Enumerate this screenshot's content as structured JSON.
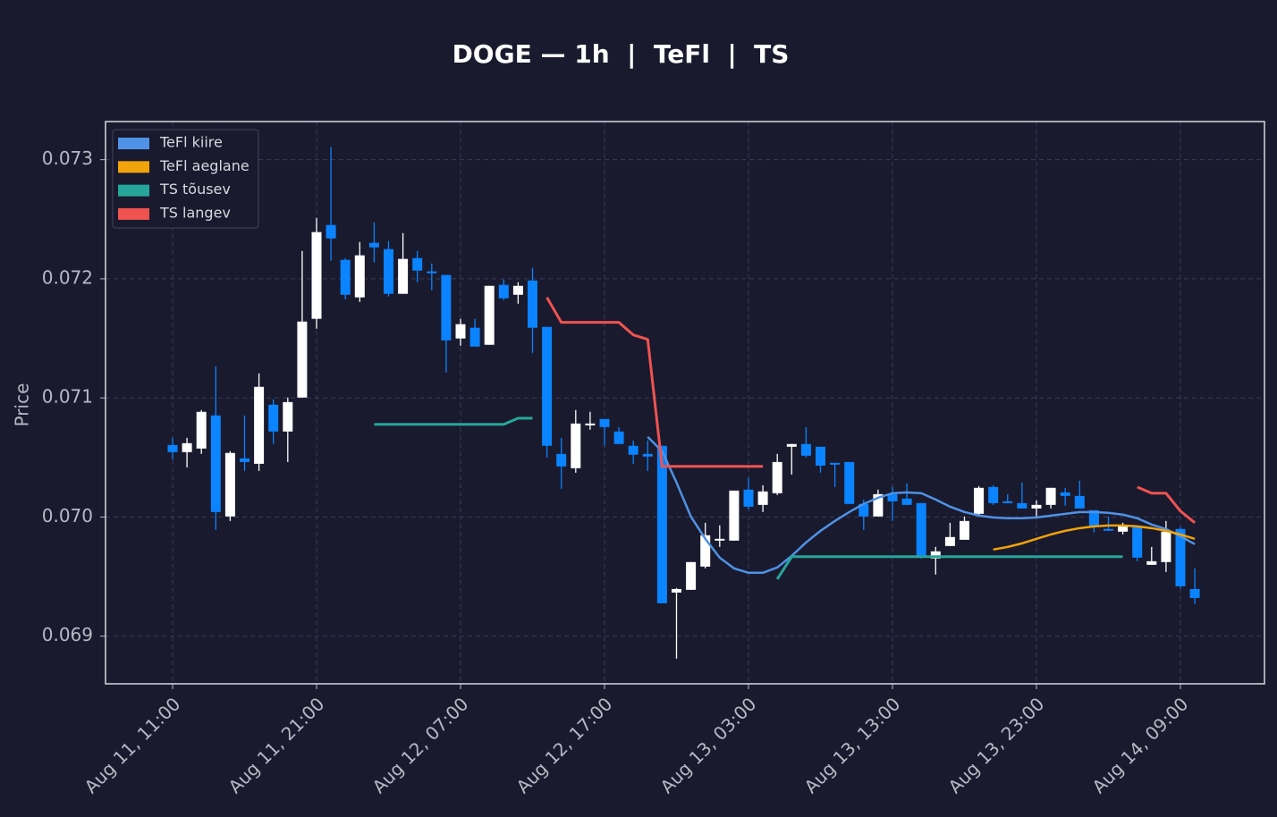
{
  "chart_data": {
    "type": "candlestick",
    "title": "DOGE — 1h  |  TeFl  |  TS",
    "y_label": "Price",
    "categories": [
      "Aug 11, 11:00",
      null,
      null,
      null,
      null,
      null,
      null,
      null,
      null,
      null,
      "Aug 11, 21:00",
      null,
      null,
      null,
      null,
      null,
      null,
      null,
      null,
      null,
      "Aug 12, 07:00",
      null,
      null,
      null,
      null,
      null,
      null,
      null,
      null,
      null,
      "Aug 12, 17:00",
      null,
      null,
      null,
      null,
      null,
      null,
      null,
      null,
      null,
      "Aug 13, 03:00",
      null,
      null,
      null,
      null,
      null,
      null,
      null,
      null,
      null,
      "Aug 13, 13:00",
      null,
      null,
      null,
      null,
      null,
      null,
      null,
      null,
      null,
      "Aug 13, 23:00",
      null,
      null,
      null,
      null,
      null,
      null,
      null,
      null,
      null,
      "Aug 14, 09:00",
      null
    ],
    "open": [
      0.070605,
      0.070545,
      0.070575,
      0.070853,
      0.070005,
      0.070492,
      0.070447,
      0.070943,
      0.070718,
      0.071003,
      0.071664,
      0.072452,
      0.072159,
      0.071844,
      0.072302,
      0.072249,
      0.071874,
      0.072174,
      0.072062,
      0.072032,
      0.071499,
      0.071589,
      0.071446,
      0.071949,
      0.071866,
      0.071986,
      0.071596,
      0.07053,
      0.07041,
      0.07077,
      0.070823,
      0.070718,
      0.070598,
      0.07053,
      0.070598,
      0.069366,
      0.069389,
      0.069584,
      0.069802,
      0.069802,
      0.07023,
      0.070102,
      0.0702,
      0.07059,
      0.070613,
      0.07059,
      0.070455,
      0.070462,
      0.07011,
      0.070005,
      0.070192,
      0.070155,
      0.070117,
      0.069652,
      0.069757,
      0.069809,
      0.070027,
      0.070252,
      0.070132,
      0.070117,
      0.070072,
      0.070102,
      0.070207,
      0.070177,
      0.070057,
      0.0699,
      0.069877,
      0.069915,
      0.069599,
      0.069622,
      0.0699,
      0.069396
    ],
    "high": [
      0.070665,
      0.070665,
      0.070898,
      0.071266,
      0.070553,
      0.070853,
      0.071206,
      0.070988,
      0.071003,
      0.072234,
      0.072512,
      0.073105,
      0.072174,
      0.072309,
      0.072474,
      0.072317,
      0.072384,
      0.072234,
      0.072129,
      0.072032,
      0.071664,
      0.071664,
      0.071941,
      0.071994,
      0.071971,
      0.072092,
      0.071596,
      0.070665,
      0.070898,
      0.070883,
      0.070823,
      0.070755,
      0.070643,
      0.070643,
      0.070598,
      0.069404,
      0.069622,
      0.069952,
      0.06993,
      0.070222,
      0.070327,
      0.070267,
      0.07053,
      0.070613,
      0.070755,
      0.07059,
      0.070455,
      0.070462,
      0.070147,
      0.07023,
      0.070252,
      0.070282,
      0.070117,
      0.069749,
      0.069952,
      0.070005,
      0.07026,
      0.070267,
      0.070192,
      0.07029,
      0.07014,
      0.070245,
      0.070245,
      0.070305,
      0.070057,
      0.070005,
      0.069952,
      0.069915,
      0.069749,
      0.069967,
      0.069915,
      0.069569
    ],
    "low": [
      0.070485,
      0.070417,
      0.07053,
      0.069892,
      0.069967,
      0.070387,
      0.070387,
      0.070613,
      0.070462,
      0.071003,
      0.071581,
      0.072152,
      0.071829,
      0.071806,
      0.072137,
      0.071851,
      0.071874,
      0.071971,
      0.071904,
      0.071213,
      0.071438,
      0.071431,
      0.071446,
      0.071821,
      0.071791,
      0.071378,
      0.0705,
      0.070237,
      0.070372,
      0.070733,
      0.070598,
      0.070613,
      0.070447,
      0.070387,
      0.069276,
      0.068811,
      0.069389,
      0.069569,
      0.069749,
      0.069802,
      0.070065,
      0.070042,
      0.070185,
      0.070357,
      0.0705,
      0.070372,
      0.070252,
      0.07011,
      0.069892,
      0.070005,
      0.069967,
      0.070102,
      0.069652,
      0.069517,
      0.069757,
      0.069809,
      0.070005,
      0.070102,
      0.070117,
      0.070072,
      0.070005,
      0.070072,
      0.070095,
      0.070072,
      0.06987,
      0.069885,
      0.069854,
      0.069629,
      0.069599,
      0.069539,
      0.069404,
      0.069269
    ],
    "close": [
      0.070545,
      0.07062,
      0.070883,
      0.070042,
      0.070538,
      0.070462,
      0.071093,
      0.070718,
      0.070965,
      0.071641,
      0.072392,
      0.072339,
      0.071866,
      0.072197,
      0.072264,
      0.071874,
      0.072167,
      0.072069,
      0.072047,
      0.071483,
      0.071619,
      0.071431,
      0.071941,
      0.071836,
      0.071941,
      0.071589,
      0.070598,
      0.070425,
      0.070785,
      0.070785,
      0.070755,
      0.070613,
      0.070523,
      0.070508,
      0.069276,
      0.069396,
      0.069622,
      0.069847,
      0.069817,
      0.070222,
      0.070087,
      0.070215,
      0.070462,
      0.070613,
      0.070515,
      0.070432,
      0.07044,
      0.07011,
      0.070005,
      0.070192,
      0.070132,
      0.070102,
      0.069667,
      0.069712,
      0.069832,
      0.069967,
      0.070245,
      0.070117,
      0.070117,
      0.070072,
      0.070102,
      0.070245,
      0.070177,
      0.070072,
      0.069922,
      0.069885,
      0.06993,
      0.069659,
      0.069629,
      0.069877,
      0.069419,
      0.069321
    ],
    "up_color": "#ffffff",
    "down_color": "#0a84ff",
    "series": [
      {
        "name": "TeFl kiire",
        "color": "#4f92e6",
        "values": [
          null,
          null,
          null,
          null,
          null,
          null,
          null,
          null,
          null,
          null,
          null,
          null,
          null,
          null,
          null,
          null,
          null,
          null,
          null,
          null,
          null,
          null,
          null,
          null,
          null,
          null,
          null,
          null,
          null,
          null,
          null,
          null,
          null,
          0.070673,
          0.070553,
          0.07029,
          0.070004,
          0.069817,
          0.069659,
          0.069569,
          0.069532,
          0.069532,
          0.069577,
          0.069674,
          0.069787,
          0.069884,
          0.069967,
          0.070042,
          0.07011,
          0.070162,
          0.0702,
          0.070207,
          0.0702,
          0.070147,
          0.070087,
          0.070042,
          0.070012,
          0.069997,
          0.06999,
          0.06999,
          0.069997,
          0.070012,
          0.070027,
          0.070042,
          0.070042,
          0.070035,
          0.07002,
          0.06999,
          0.069937,
          0.069899,
          0.069839,
          0.069772
        ]
      },
      {
        "name": "TeFl aeglane",
        "color": "#f0a30a",
        "values": [
          null,
          null,
          null,
          null,
          null,
          null,
          null,
          null,
          null,
          null,
          null,
          null,
          null,
          null,
          null,
          null,
          null,
          null,
          null,
          null,
          null,
          null,
          null,
          null,
          null,
          null,
          null,
          null,
          null,
          null,
          null,
          null,
          null,
          null,
          null,
          null,
          null,
          null,
          null,
          null,
          null,
          null,
          null,
          null,
          null,
          null,
          null,
          null,
          null,
          null,
          null,
          null,
          null,
          null,
          null,
          null,
          null,
          0.069727,
          0.069749,
          0.069779,
          0.069817,
          0.069854,
          0.069884,
          0.069907,
          0.069922,
          0.069929,
          0.069929,
          0.069922,
          0.069907,
          0.069884,
          0.069854,
          0.069817
        ]
      },
      {
        "name": "TS tõusev",
        "color": "#26a69a",
        "values": [
          null,
          null,
          null,
          null,
          null,
          null,
          null,
          null,
          null,
          null,
          null,
          null,
          null,
          null,
          0.070778,
          0.070778,
          0.070778,
          0.070778,
          0.070778,
          0.070778,
          0.070778,
          0.070778,
          0.070778,
          0.070778,
          0.07083,
          0.07083,
          null,
          null,
          null,
          null,
          null,
          null,
          null,
          null,
          null,
          null,
          null,
          null,
          null,
          null,
          null,
          null,
          0.069479,
          0.069667,
          0.069667,
          0.069667,
          0.069667,
          0.069667,
          0.069667,
          0.069667,
          0.069667,
          0.069667,
          0.069667,
          0.069667,
          0.069667,
          0.069667,
          0.069667,
          0.069667,
          0.069667,
          0.069667,
          0.069667,
          0.069667,
          0.069667,
          0.069667,
          0.069667,
          0.069667,
          0.069667,
          null,
          null,
          null,
          null,
          null
        ]
      },
      {
        "name": "TS langev",
        "color": "#ef5350",
        "values": [
          null,
          null,
          null,
          null,
          null,
          null,
          null,
          null,
          null,
          null,
          null,
          null,
          null,
          null,
          null,
          null,
          null,
          null,
          null,
          null,
          null,
          null,
          null,
          null,
          null,
          null,
          0.071844,
          0.071634,
          0.071634,
          0.071634,
          0.071634,
          0.071634,
          0.071529,
          0.071491,
          0.070425,
          0.070425,
          0.070425,
          0.070425,
          0.070425,
          0.070425,
          0.070425,
          0.070425,
          null,
          null,
          null,
          null,
          null,
          null,
          null,
          null,
          null,
          null,
          null,
          null,
          null,
          null,
          null,
          null,
          null,
          null,
          null,
          null,
          null,
          null,
          null,
          null,
          null,
          0.070252,
          0.0702,
          0.0702,
          0.07005,
          0.069952
        ]
      }
    ],
    "ylim": [
      0.0686,
      0.07332
    ],
    "yticks": [
      0.069,
      {
        "value": 0.07,
        "label": "0.070"
      },
      0.071,
      0.072,
      0.073
    ],
    "grid": true,
    "legend": "upper left"
  }
}
